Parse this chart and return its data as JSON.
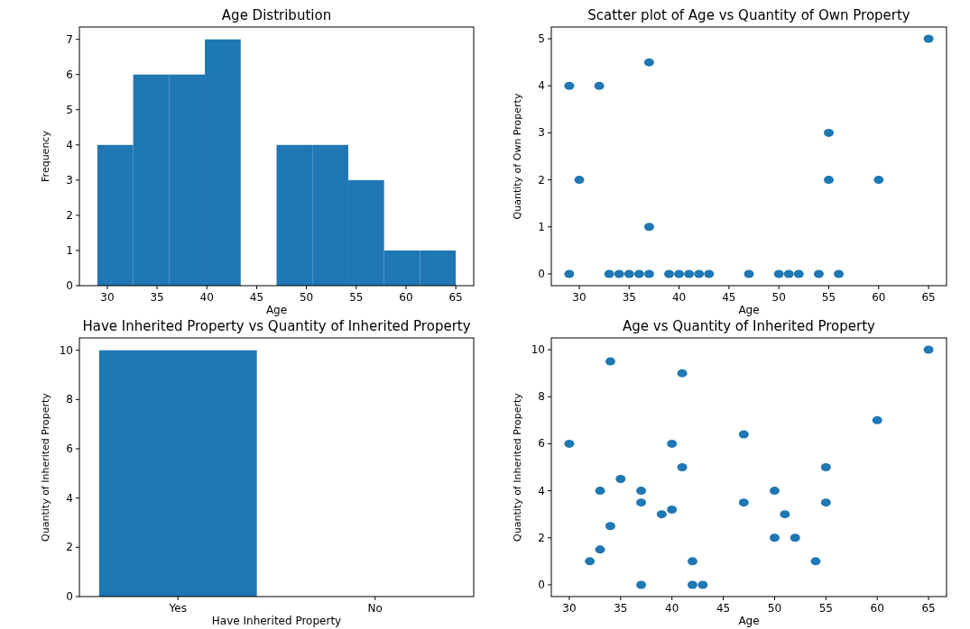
{
  "chart_data": [
    {
      "type": "histogram",
      "title": "Age Distribution",
      "xlabel": "Age",
      "ylabel": "Frequency",
      "bins": [
        29,
        32.6,
        36.2,
        39.8,
        43.4,
        47,
        50.6,
        54.2,
        57.8,
        61.4,
        65
      ],
      "values": [
        4,
        6,
        6,
        7,
        0,
        4,
        4,
        3,
        1,
        1
      ],
      "color": "#1f77b4",
      "xlim": [
        27.2,
        66.8
      ],
      "xticks": [
        30,
        35,
        40,
        45,
        50,
        55,
        60,
        65
      ],
      "ylim": [
        0,
        7.35
      ],
      "yticks": [
        0,
        1,
        2,
        3,
        4,
        5,
        6,
        7
      ]
    },
    {
      "type": "scatter",
      "title": "Scatter plot of Age vs Quantity of Own Property",
      "xlabel": "Age",
      "ylabel": "Quantity of Own Property",
      "x": [
        29,
        29,
        30,
        32,
        37,
        37,
        33,
        34,
        35,
        36,
        37,
        39,
        40,
        41,
        42,
        43,
        47,
        50,
        51,
        52,
        54,
        55,
        55,
        56,
        60,
        65
      ],
      "values": [
        4,
        0,
        2,
        4,
        4.5,
        1,
        0,
        0,
        0,
        0,
        0,
        0,
        0,
        0,
        0,
        0,
        0,
        0,
        0,
        0,
        0,
        3,
        2,
        0,
        2,
        5
      ],
      "color": "#1f77b4",
      "marker": "circle",
      "xlim": [
        27.2,
        66.8
      ],
      "xticks": [
        30,
        35,
        40,
        45,
        50,
        55,
        60,
        65
      ],
      "ylim": [
        -0.25,
        5.25
      ],
      "yticks": [
        0,
        1,
        2,
        3,
        4,
        5
      ]
    },
    {
      "type": "bar",
      "title": "Have Inherited Property vs Quantity of Inherited Property",
      "xlabel": "Have Inherited Property",
      "ylabel": "Quantity of Inherited Property",
      "categories": [
        "Yes",
        "No"
      ],
      "values": [
        10,
        0
      ],
      "color": "#1f77b4",
      "ylim": [
        0,
        10.5
      ],
      "yticks": [
        0,
        2,
        4,
        6,
        8,
        10
      ]
    },
    {
      "type": "scatter",
      "title": "Age vs Quantity of Inherited Property",
      "xlabel": "Age",
      "ylabel": "Quantity of Inherited Property",
      "x": [
        30,
        32,
        33,
        33,
        34,
        34,
        35,
        37,
        37,
        37,
        39,
        40,
        40,
        41,
        41,
        42,
        42,
        43,
        47,
        47,
        50,
        50,
        51,
        52,
        54,
        55,
        55,
        60,
        65
      ],
      "values": [
        6,
        1,
        4,
        1.5,
        9.5,
        2.5,
        4.5,
        4,
        3.5,
        0,
        3,
        6,
        3.2,
        9,
        5,
        1,
        0,
        0,
        6.4,
        3.5,
        4,
        2,
        3,
        2,
        1,
        5,
        3.5,
        7,
        10
      ],
      "color": "#1f77b4",
      "marker": "circle",
      "xlim": [
        28.25,
        66.75
      ],
      "xticks": [
        30,
        35,
        40,
        45,
        50,
        55,
        60,
        65
      ],
      "ylim": [
        -0.5,
        10.5
      ],
      "yticks": [
        0,
        2,
        4,
        6,
        8,
        10
      ]
    }
  ]
}
